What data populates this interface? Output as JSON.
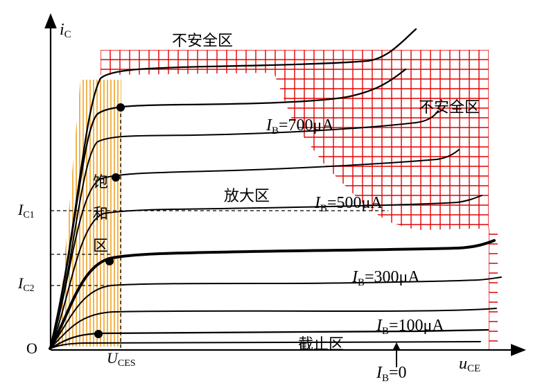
{
  "axes": {
    "y_label": {
      "main": "i",
      "sub": "C"
    },
    "x_label": {
      "main": "u",
      "sub": "CE"
    },
    "origin": "O"
  },
  "y_ticks": [
    {
      "main": "I",
      "sub": "C1"
    },
    {
      "main": "I",
      "sub": "C2"
    }
  ],
  "x_ticks": [
    {
      "main": "U",
      "sub": "CES"
    }
  ],
  "regions": {
    "unsafe_top": "不安全区",
    "unsafe_right": "不安全区",
    "amplify": "放大区",
    "saturation": [
      "饱",
      "和",
      "区"
    ],
    "cutoff": "截止区"
  },
  "curve_labels": [
    {
      "main": "I",
      "sub": "B",
      "value": "=700μA"
    },
    {
      "main": "I",
      "sub": "B",
      "value": "=500μA"
    },
    {
      "main": "I",
      "sub": "B",
      "value": "=300μA"
    },
    {
      "main": "I",
      "sub": "B",
      "value": "=100μA"
    }
  ],
  "ib_zero": {
    "main": "I",
    "sub": "B",
    "value": "=0"
  },
  "colors": {
    "axis": "#000000",
    "curve": "#000000",
    "unsafe_grid": "#e00000",
    "saturation_hatch": "#f0a020",
    "dashed": "#000000"
  }
}
